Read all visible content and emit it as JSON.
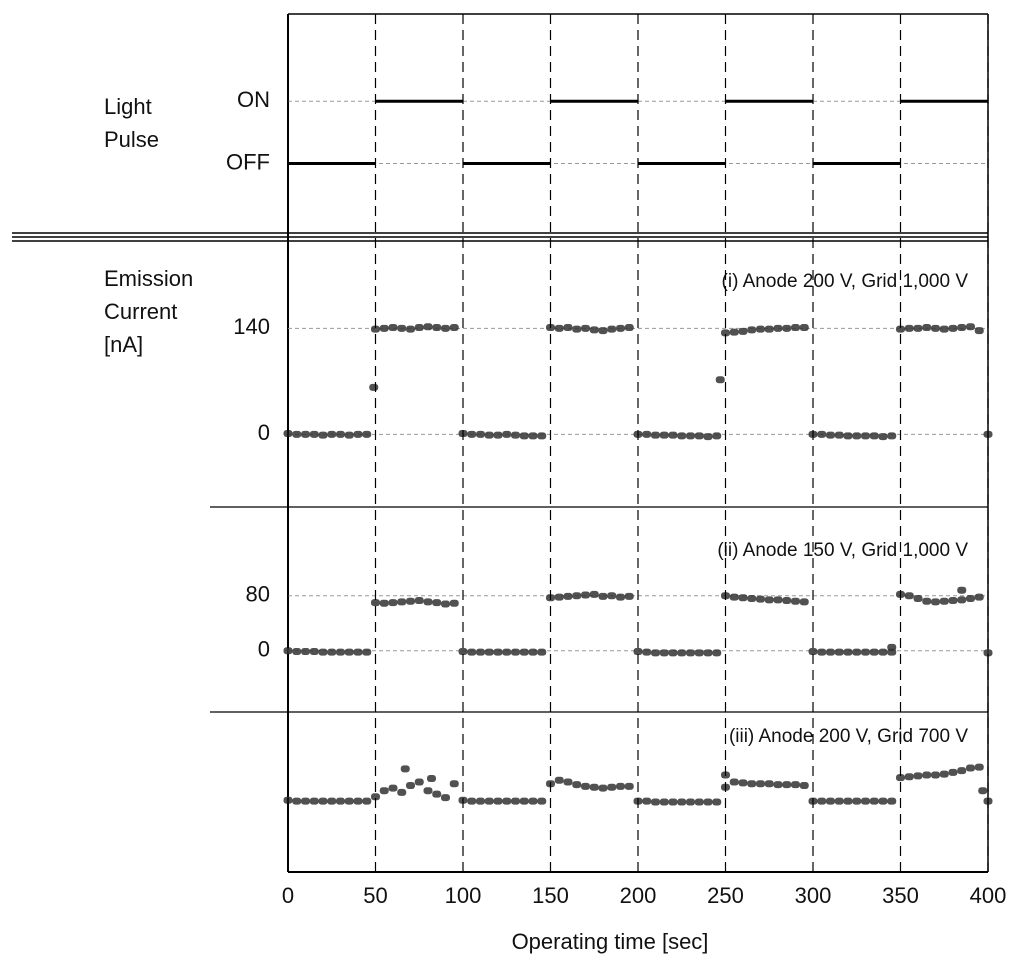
{
  "chart_data": [
    {
      "type": "step",
      "ylabel": [
        "Light",
        "Pulse"
      ],
      "color": "#000000",
      "x": [
        0,
        50,
        100,
        150,
        200,
        250,
        300,
        350,
        400
      ],
      "values": [
        0,
        1,
        0,
        1,
        0,
        1,
        0,
        1,
        1
      ],
      "xlim": [
        0,
        400
      ],
      "ylim": [
        -1.1,
        2.4
      ],
      "yticks": [
        {
          "value": 0,
          "label": "OFF"
        },
        {
          "value": 1,
          "label": "ON"
        }
      ]
    },
    {
      "type": "scatter",
      "ylabel": [
        "Emission",
        "Current",
        "[nA]"
      ],
      "annotation": "(i) Anode 200 V, Grid 1,000 V",
      "color": "#333333",
      "x": [
        0,
        5,
        10,
        15,
        20,
        25,
        30,
        35,
        40,
        45,
        50,
        55,
        60,
        65,
        70,
        75,
        80,
        85,
        90,
        95,
        100,
        105,
        110,
        115,
        120,
        125,
        130,
        135,
        140,
        145,
        150,
        155,
        160,
        165,
        170,
        175,
        180,
        185,
        190,
        195,
        200,
        205,
        210,
        215,
        220,
        225,
        230,
        235,
        240,
        245,
        250,
        255,
        260,
        265,
        270,
        275,
        280,
        285,
        290,
        295,
        300,
        305,
        310,
        315,
        320,
        325,
        330,
        335,
        340,
        345,
        350,
        355,
        360,
        365,
        370,
        375,
        380,
        385,
        390,
        395,
        400,
        49,
        247
      ],
      "y": [
        1,
        0,
        0,
        0,
        -1,
        0,
        0,
        -1,
        0,
        0,
        139,
        140,
        141,
        140,
        139,
        141,
        142,
        141,
        140,
        141,
        1,
        0,
        0,
        -1,
        -1,
        0,
        -1,
        -2,
        -2,
        -2,
        141,
        140,
        141,
        139,
        140,
        138,
        137,
        139,
        140,
        141,
        0,
        0,
        -1,
        -1,
        -1,
        -2,
        -2,
        -2,
        -3,
        -2,
        134,
        135,
        136,
        138,
        139,
        139,
        140,
        140,
        141,
        141,
        0,
        0,
        -1,
        -1,
        -2,
        -2,
        -2,
        -2,
        -3,
        -2,
        139,
        140,
        140,
        141,
        140,
        139,
        140,
        141,
        142,
        137,
        0,
        62,
        72
      ],
      "xlim": [
        0,
        400
      ],
      "ylim": [
        -96,
        254
      ],
      "yticks": [
        0,
        140
      ]
    },
    {
      "type": "scatter",
      "annotation": "(ii) Anode 150 V, Grid 1,000 V",
      "color": "#333333",
      "x": [
        0,
        5,
        10,
        15,
        20,
        25,
        30,
        35,
        40,
        45,
        50,
        55,
        60,
        65,
        70,
        75,
        80,
        85,
        90,
        95,
        100,
        105,
        110,
        115,
        120,
        125,
        130,
        135,
        140,
        145,
        150,
        155,
        160,
        165,
        170,
        175,
        180,
        185,
        190,
        195,
        200,
        205,
        210,
        215,
        220,
        225,
        230,
        235,
        240,
        245,
        250,
        255,
        260,
        265,
        270,
        275,
        280,
        285,
        290,
        295,
        300,
        305,
        310,
        315,
        320,
        325,
        330,
        335,
        340,
        345,
        350,
        355,
        360,
        365,
        370,
        375,
        380,
        385,
        390,
        395,
        400,
        345,
        385
      ],
      "y": [
        0,
        -1,
        -1,
        -1,
        -2,
        -2,
        -2,
        -2,
        -2,
        -2,
        70,
        69,
        70,
        71,
        72,
        73,
        71,
        70,
        68,
        69,
        -1,
        -2,
        -2,
        -2,
        -2,
        -2,
        -2,
        -2,
        -2,
        -2,
        77,
        78,
        79,
        80,
        81,
        82,
        79,
        80,
        78,
        79,
        -1,
        -2,
        -3,
        -3,
        -3,
        -3,
        -3,
        -3,
        -3,
        -3,
        80,
        78,
        77,
        76,
        75,
        74,
        74,
        73,
        72,
        71,
        -1,
        -2,
        -2,
        -2,
        -2,
        -2,
        -2,
        -2,
        -2,
        -2,
        82,
        80,
        76,
        72,
        71,
        72,
        73,
        74,
        76,
        78,
        -3,
        5,
        88
      ],
      "xlim": [
        0,
        400
      ],
      "ylim": [
        -89,
        209
      ],
      "yticks": [
        0,
        80
      ]
    },
    {
      "type": "scatter",
      "annotation": "(iii) Anode 200 V, Grid 700 V",
      "xlabel": "Operating time [sec]",
      "color": "#333333",
      "x": [
        0,
        5,
        10,
        15,
        20,
        25,
        30,
        35,
        40,
        45,
        50,
        55,
        60,
        65,
        70,
        75,
        80,
        85,
        90,
        95,
        100,
        105,
        110,
        115,
        120,
        125,
        130,
        135,
        140,
        145,
        150,
        155,
        160,
        165,
        170,
        175,
        180,
        185,
        190,
        195,
        200,
        205,
        210,
        215,
        220,
        225,
        230,
        235,
        240,
        245,
        250,
        255,
        260,
        265,
        270,
        275,
        280,
        285,
        290,
        295,
        300,
        305,
        310,
        315,
        320,
        325,
        330,
        335,
        340,
        345,
        350,
        355,
        360,
        365,
        370,
        375,
        380,
        385,
        390,
        395,
        400,
        67,
        82,
        250,
        397
      ],
      "y": [
        1,
        0,
        0,
        0,
        0,
        0,
        0,
        0,
        0,
        0,
        5,
        12,
        15,
        10,
        18,
        22,
        12,
        8,
        4,
        20,
        1,
        0,
        0,
        0,
        0,
        0,
        0,
        0,
        0,
        0,
        20,
        24,
        22,
        19,
        17,
        16,
        15,
        16,
        17,
        17,
        0,
        0,
        -1,
        -1,
        -1,
        -1,
        -1,
        -1,
        -1,
        -1,
        16,
        22,
        21,
        20,
        20,
        20,
        19,
        19,
        19,
        18,
        0,
        0,
        0,
        0,
        0,
        0,
        0,
        0,
        0,
        0,
        27,
        28,
        29,
        30,
        30,
        31,
        33,
        35,
        38,
        39,
        0,
        37,
        26,
        30,
        12
      ],
      "xlim": [
        0,
        400
      ],
      "ylim": [
        -81,
        102
      ],
      "xticks": [
        0,
        50,
        100,
        150,
        200,
        250,
        300,
        350,
        400
      ]
    }
  ]
}
